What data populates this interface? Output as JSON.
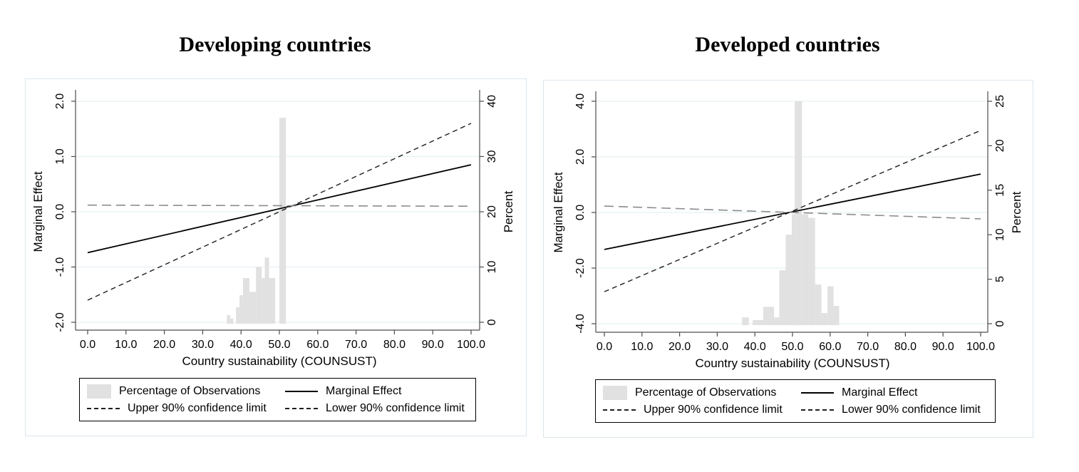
{
  "page": {
    "background": "#ffffff"
  },
  "colors": {
    "bar": "#e1e1e1",
    "grid": "#e8f0f4",
    "axis": "#4d4d4d"
  },
  "chart_data": [
    {
      "type": "line+bar",
      "title": "Developing countries",
      "xlim": [
        0,
        100
      ],
      "x_axis": {
        "title": "Country sustainability (COUNSUST)",
        "ticks": [
          {
            "v": 0,
            "label": "0.0"
          },
          {
            "v": 10,
            "label": "10.0"
          },
          {
            "v": 20,
            "label": "20.0"
          },
          {
            "v": 30,
            "label": "30.0"
          },
          {
            "v": 40,
            "label": "40.0"
          },
          {
            "v": 50,
            "label": "50.0"
          },
          {
            "v": 60,
            "label": "60.0"
          },
          {
            "v": 70,
            "label": "70.0"
          },
          {
            "v": 80,
            "label": "80.0"
          },
          {
            "v": 90,
            "label": "90.0"
          },
          {
            "v": 100,
            "label": "100.0"
          }
        ]
      },
      "y_left": {
        "title": "Marginal Effect",
        "ticks": [
          {
            "v": 2.0,
            "label": "2.0"
          },
          {
            "v": 1.0,
            "label": "1.0"
          },
          {
            "v": 0.0,
            "label": "0.0"
          },
          {
            "v": -1.0,
            "label": "-1.0"
          },
          {
            "v": -2.0,
            "label": "-2.0"
          }
        ]
      },
      "y_right": {
        "title": "Percent",
        "ticks": [
          {
            "v": 40,
            "label": "40"
          },
          {
            "v": 30,
            "label": "30"
          },
          {
            "v": 20,
            "label": "20"
          },
          {
            "v": 10,
            "label": "10"
          },
          {
            "v": 0,
            "label": "0"
          }
        ]
      },
      "lines": [
        {
          "name": "marginal-effect",
          "color": "#000000",
          "width": 1.8,
          "dash": "",
          "points": [
            [
              0,
              -0.74
            ],
            [
              100,
              0.85
            ]
          ]
        },
        {
          "name": "confidence-limit-steep",
          "color": "#1f1f1f",
          "width": 1.4,
          "dash": "7 5",
          "points": [
            [
              0,
              -1.6
            ],
            [
              100,
              1.6
            ]
          ]
        },
        {
          "name": "confidence-limit-flat",
          "color": "#8c8c8c",
          "width": 1.6,
          "dash": "13 7",
          "points": [
            [
              0,
              0.12
            ],
            [
              100,
              0.1
            ]
          ]
        }
      ],
      "bars": [
        {
          "x0": 36.3,
          "x1": 37.2,
          "h": 1.3
        },
        {
          "x0": 37.2,
          "x1": 38.0,
          "h": 0.7
        },
        {
          "x0": 38.7,
          "x1": 39.6,
          "h": 2.7
        },
        {
          "x0": 39.6,
          "x1": 40.5,
          "h": 4.9
        },
        {
          "x0": 40.5,
          "x1": 42.2,
          "h": 8.0
        },
        {
          "x0": 42.2,
          "x1": 43.9,
          "h": 5.5
        },
        {
          "x0": 43.9,
          "x1": 45.4,
          "h": 10.0
        },
        {
          "x0": 45.4,
          "x1": 46.2,
          "h": 8.0
        },
        {
          "x0": 46.2,
          "x1": 47.3,
          "h": 11.7
        },
        {
          "x0": 47.3,
          "x1": 48.9,
          "h": 8.0
        },
        {
          "x0": 50.0,
          "x1": 51.7,
          "h": 37.0
        }
      ],
      "legend": [
        {
          "label": "Percentage of Observations",
          "swatch": "bar"
        },
        {
          "label": "Marginal Effect",
          "swatch": "solid"
        },
        {
          "label": "Upper 90% confidence limit",
          "swatch": "dashed"
        },
        {
          "label": "Lower 90% confidence limit",
          "swatch": "dashed"
        }
      ]
    },
    {
      "type": "line+bar",
      "title": "Developed countries",
      "xlim": [
        0,
        100
      ],
      "x_axis": {
        "title": "Country sustainability (COUNSUST)",
        "ticks": [
          {
            "v": 0,
            "label": "0.0"
          },
          {
            "v": 10,
            "label": "10.0"
          },
          {
            "v": 20,
            "label": "20.0"
          },
          {
            "v": 30,
            "label": "30.0"
          },
          {
            "v": 40,
            "label": "40.0"
          },
          {
            "v": 50,
            "label": "50.0"
          },
          {
            "v": 60,
            "label": "60.0"
          },
          {
            "v": 70,
            "label": "70.0"
          },
          {
            "v": 80,
            "label": "80.0"
          },
          {
            "v": 90,
            "label": "90.0"
          },
          {
            "v": 100,
            "label": "100.0"
          }
        ]
      },
      "y_left": {
        "title": "Marginal Effect",
        "ticks": [
          {
            "v": 4.0,
            "label": "4.0"
          },
          {
            "v": 2.0,
            "label": "2.0"
          },
          {
            "v": 0.0,
            "label": "0.0"
          },
          {
            "v": -2.0,
            "label": "-2.0"
          },
          {
            "v": -4.0,
            "label": "-4.0"
          }
        ]
      },
      "y_right": {
        "title": "Percent",
        "ticks": [
          {
            "v": 25,
            "label": "25"
          },
          {
            "v": 20,
            "label": "20"
          },
          {
            "v": 15,
            "label": "15"
          },
          {
            "v": 10,
            "label": "10"
          },
          {
            "v": 5,
            "label": "5"
          },
          {
            "v": 0,
            "label": "0"
          }
        ]
      },
      "lines": [
        {
          "name": "marginal-effect",
          "color": "#000000",
          "width": 1.8,
          "dash": "",
          "points": [
            [
              0,
              -1.33
            ],
            [
              100,
              1.38
            ]
          ]
        },
        {
          "name": "confidence-limit-steep",
          "color": "#1f1f1f",
          "width": 1.4,
          "dash": "7 5",
          "points": [
            [
              0,
              -2.85
            ],
            [
              100,
              2.95
            ]
          ]
        },
        {
          "name": "confidence-limit-flat",
          "color": "#8c8c8c",
          "width": 1.6,
          "dash": "13 7",
          "points": [
            [
              0,
              0.23
            ],
            [
              100,
              -0.23
            ]
          ]
        }
      ],
      "bars": [
        {
          "x0": 36.6,
          "x1": 38.4,
          "h": 0.7
        },
        {
          "x0": 39.4,
          "x1": 42.2,
          "h": 0.4
        },
        {
          "x0": 42.2,
          "x1": 45.1,
          "h": 1.9
        },
        {
          "x0": 45.1,
          "x1": 46.5,
          "h": 0.7
        },
        {
          "x0": 46.5,
          "x1": 48.2,
          "h": 6.0
        },
        {
          "x0": 48.2,
          "x1": 49.8,
          "h": 10.0
        },
        {
          "x0": 49.8,
          "x1": 50.6,
          "h": 12.3
        },
        {
          "x0": 50.6,
          "x1": 52.5,
          "h": 25.0
        },
        {
          "x0": 52.5,
          "x1": 54.2,
          "h": 12.3
        },
        {
          "x0": 54.2,
          "x1": 56.0,
          "h": 11.9
        },
        {
          "x0": 56.0,
          "x1": 57.7,
          "h": 4.4
        },
        {
          "x0": 57.7,
          "x1": 59.3,
          "h": 1.2
        },
        {
          "x0": 59.3,
          "x1": 60.9,
          "h": 4.2
        },
        {
          "x0": 60.9,
          "x1": 62.4,
          "h": 2.0
        }
      ],
      "legend": [
        {
          "label": "Percentage of Observations",
          "swatch": "bar"
        },
        {
          "label": "Marginal Effect",
          "swatch": "solid"
        },
        {
          "label": "Upper 90% confidence limit",
          "swatch": "dashed"
        },
        {
          "label": "Lower 90% confidence limit",
          "swatch": "dashed"
        }
      ]
    }
  ]
}
